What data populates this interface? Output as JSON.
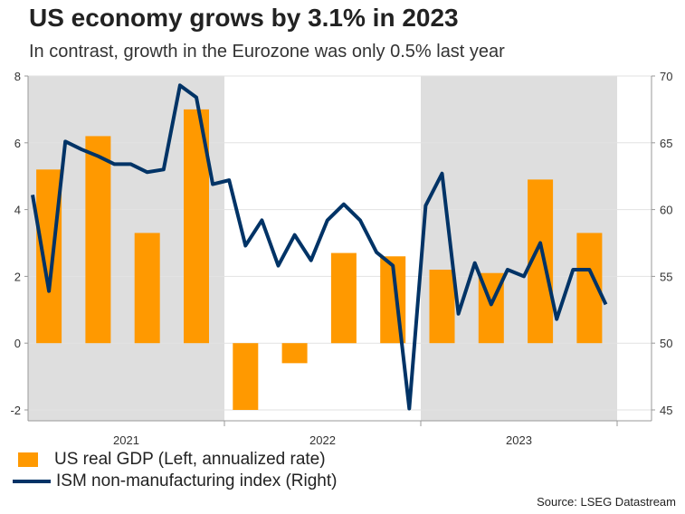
{
  "title": "US economy grows by 3.1% in 2023",
  "subtitle": "In contrast, growth in the Eurozone was only 0.5% last year",
  "source": "Source: LSEG Datastream",
  "chart_data": {
    "type": "bar+line",
    "categories": [
      "2021",
      "2022",
      "2023"
    ],
    "left_axis": {
      "ylim": [
        -2,
        8
      ],
      "ticks": [
        "8",
        "6",
        "4",
        "2",
        "0",
        "-2"
      ]
    },
    "right_axis": {
      "ylim": [
        45,
        70
      ],
      "ticks": [
        "70",
        "65",
        "60",
        "55",
        "50",
        "45"
      ]
    },
    "shaded_years": [
      "2021",
      "2023"
    ],
    "grid": true,
    "legend_position": "bottom",
    "series": [
      {
        "name": "US real GDP (Left, annualized rate)",
        "type": "bar",
        "axis": "left",
        "color": "#FF9900",
        "x": [
          "2021 Q1",
          "2021 Q2",
          "2021 Q3",
          "2021 Q4",
          "2022 Q1",
          "2022 Q2",
          "2022 Q3",
          "2022 Q4",
          "2023 Q1",
          "2023 Q2",
          "2023 Q3",
          "2023 Q4"
        ],
        "values": [
          5.2,
          6.2,
          3.3,
          7.0,
          -2.0,
          -0.6,
          2.7,
          2.6,
          2.2,
          2.1,
          4.9,
          3.3
        ]
      },
      {
        "name": "ISM non-manufacturing index (Right)",
        "type": "line",
        "axis": "right",
        "color": "#003366",
        "x": [
          "2021-01",
          "2021-02",
          "2021-03",
          "2021-04",
          "2021-05",
          "2021-06",
          "2021-07",
          "2021-08",
          "2021-09",
          "2021-10",
          "2021-11",
          "2021-12",
          "2022-01",
          "2022-02",
          "2022-03",
          "2022-04",
          "2022-05",
          "2022-06",
          "2022-07",
          "2022-08",
          "2022-09",
          "2022-10",
          "2022-11",
          "2022-12",
          "2023-01",
          "2023-02",
          "2023-03",
          "2023-04",
          "2023-05",
          "2023-06",
          "2023-07",
          "2023-08",
          "2023-09",
          "2023-10",
          "2023-11",
          "2023-12"
        ],
        "values": [
          61.1,
          53.9,
          65.1,
          64.5,
          64.0,
          63.4,
          63.4,
          62.8,
          63.0,
          69.3,
          68.4,
          61.9,
          62.2,
          57.3,
          59.2,
          55.8,
          58.1,
          56.2,
          59.2,
          60.4,
          59.2,
          56.8,
          55.8,
          45.1,
          60.3,
          62.7,
          52.2,
          56.0,
          52.9,
          55.5,
          55.0,
          57.5,
          51.8,
          55.5,
          55.5,
          52.9
        ]
      }
    ]
  }
}
